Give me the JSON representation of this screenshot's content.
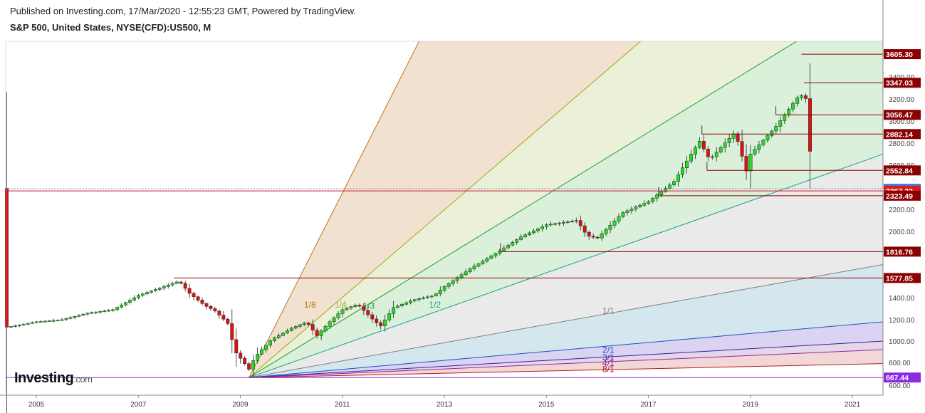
{
  "header": {
    "published": "Published on Investing.com, 17/Mar/2020 - 12:55:23 GMT, Powered by TradingView.",
    "symbol": "S&P 500, United States, NYSE(CFD):US500, M"
  },
  "logo": {
    "text": "Investing",
    "suffix": ".com"
  },
  "chart_data": {
    "type": "candlestick",
    "title": "S&P 500, United States, NYSE(CFD):US500, M",
    "x_range": [
      2004.4,
      2021.6
    ],
    "ylim": [
      570,
      3850
    ],
    "y_ticks": [
      600,
      800,
      1000,
      1200,
      1400,
      2000,
      2200,
      2400,
      2600,
      2800,
      3000,
      3200,
      3400
    ],
    "x_ticks": [
      "2005",
      "2007",
      "2009",
      "2011",
      "2013",
      "2015",
      "2017",
      "2019",
      "2021"
    ],
    "path_points": [
      [
        2004.42,
        1130
      ],
      [
        2005.0,
        1180
      ],
      [
        2005.5,
        1200
      ],
      [
        2006.0,
        1260
      ],
      [
        2006.5,
        1290
      ],
      [
        2007.0,
        1420
      ],
      [
        2007.5,
        1500
      ],
      [
        2007.8,
        1550
      ],
      [
        2008.0,
        1440
      ],
      [
        2008.3,
        1330
      ],
      [
        2008.5,
        1280
      ],
      [
        2008.75,
        1170
      ],
      [
        2008.9,
        900
      ],
      [
        2009.17,
        740
      ],
      [
        2009.3,
        860
      ],
      [
        2009.6,
        1010
      ],
      [
        2010.0,
        1120
      ],
      [
        2010.3,
        1180
      ],
      [
        2010.5,
        1050
      ],
      [
        2010.75,
        1180
      ],
      [
        2011.0,
        1290
      ],
      [
        2011.3,
        1340
      ],
      [
        2011.6,
        1200
      ],
      [
        2011.75,
        1140
      ],
      [
        2012.0,
        1310
      ],
      [
        2012.4,
        1380
      ],
      [
        2012.8,
        1420
      ],
      [
        2013.0,
        1500
      ],
      [
        2013.5,
        1660
      ],
      [
        2014.0,
        1800
      ],
      [
        2014.5,
        1950
      ],
      [
        2015.0,
        2060
      ],
      [
        2015.6,
        2100
      ],
      [
        2015.8,
        1960
      ],
      [
        2016.0,
        1940
      ],
      [
        2016.5,
        2170
      ],
      [
        2017.0,
        2270
      ],
      [
        2017.5,
        2450
      ],
      [
        2018.0,
        2820
      ],
      [
        2018.2,
        2650
      ],
      [
        2018.7,
        2900
      ],
      [
        2018.95,
        2500
      ],
      [
        2019.0,
        2700
      ],
      [
        2019.5,
        2950
      ],
      [
        2019.95,
        3230
      ],
      [
        2020.08,
        3230
      ],
      [
        2020.15,
        2950
      ],
      [
        2020.2,
        2390
      ]
    ],
    "fans": {
      "origin": [
        2009.17,
        667.44
      ],
      "lines": [
        {
          "label": "1/8",
          "end_price": 12000,
          "color": "#b8751e",
          "fill": "#efdcc5"
        },
        {
          "label": "1/4",
          "end_price": 5600,
          "color": "#9aa81a",
          "fill": "#e7eed2"
        },
        {
          "label": "1/3",
          "end_price": 4200,
          "color": "#1e9e2e",
          "fill": "#d5edd3"
        },
        {
          "label": "1/2",
          "end_price": 2700,
          "color": "#20a090",
          "fill": "#e6e6e6"
        },
        {
          "label": "1/1",
          "end_price": 1700,
          "color": "#808080",
          "fill": "#cde3ec"
        },
        {
          "label": "2/1",
          "end_price": 1180,
          "color": "#1f4fbf",
          "fill": "#d3cdf0"
        },
        {
          "label": "3/1",
          "end_price": 1000,
          "color": "#3a1f9f",
          "fill": "#e2cfe6"
        },
        {
          "label": "4/1",
          "end_price": 920,
          "color": "#8a2aa0",
          "fill": "#f0d0cf"
        },
        {
          "label": "8/1",
          "end_price": 790,
          "color": "#b02020",
          "fill": "#ffffff"
        }
      ]
    },
    "levels": [
      {
        "price": 3605.3,
        "label": "3605.30",
        "from": 2020.0,
        "bg": "#8b0000"
      },
      {
        "price": 3347.03,
        "label": "3347.03",
        "from": 2020.05,
        "bg": "#8b0000"
      },
      {
        "price": 3056.47,
        "label": "3056.47",
        "from": 2019.5,
        "bg": "#8b0000"
      },
      {
        "price": 2882.14,
        "label": "2882.14",
        "from": 2018.05,
        "bg": "#8b0000"
      },
      {
        "price": 2552.84,
        "label": "2552.84",
        "from": 2018.15,
        "bg": "#8b0000"
      },
      {
        "price": 2386.16,
        "label": "2386.16",
        "from": 2004.4,
        "bg": "#4a6fd8"
      },
      {
        "price": 2367.23,
        "label": "2367.23",
        "from": 2004.4,
        "bg": "#d81c1c"
      },
      {
        "price": 2323.49,
        "label": "2323.49",
        "from": 2017.2,
        "bg": "#8b0000"
      },
      {
        "price": 1816.76,
        "label": "1816.76",
        "from": 2014.1,
        "bg": "#8b0000"
      },
      {
        "price": 1577.85,
        "label": "1577.85",
        "from": 2007.7,
        "bg": "#8b0000"
      },
      {
        "price": 667.44,
        "label": "667.44",
        "from": 2004.4,
        "bg": "#8a2be2"
      }
    ]
  }
}
